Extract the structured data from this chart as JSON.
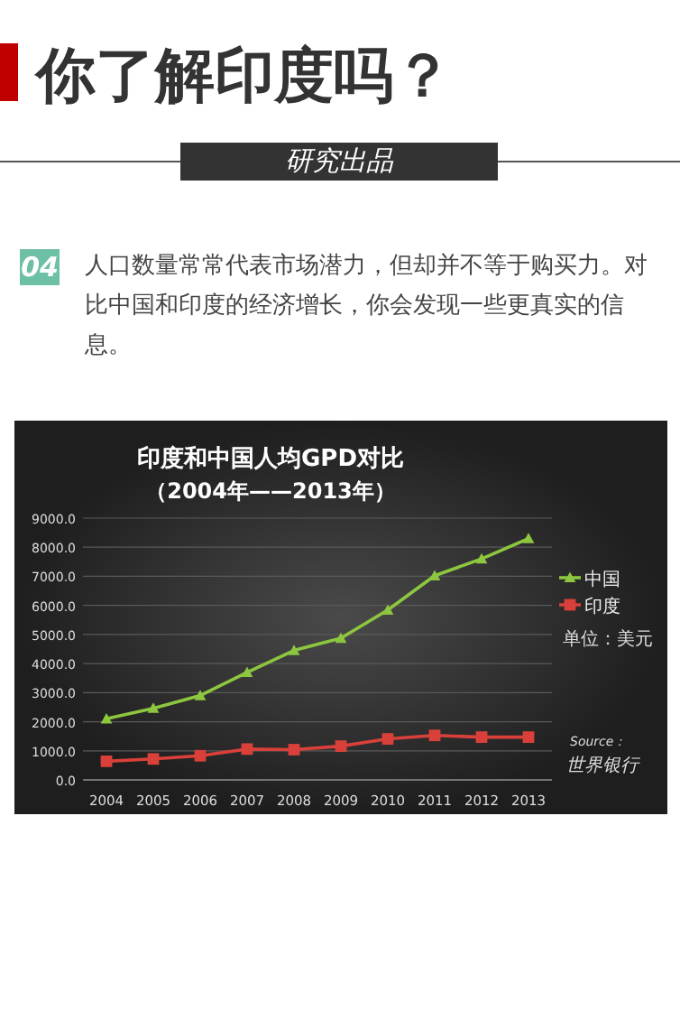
{
  "chart_data": {
    "type": "line",
    "title": "印度和中国人均GPD对比",
    "subtitle": "（2004年——2013年）",
    "categories": [
      "2004",
      "2005",
      "2006",
      "2007",
      "2008",
      "2009",
      "2010",
      "2011",
      "2012",
      "2013"
    ],
    "series": [
      {
        "name": "中国",
        "color": "#8dc63f",
        "marker": "triangle",
        "values": [
          2100,
          2460,
          2900,
          3700,
          4450,
          4870,
          5840,
          7020,
          7600,
          8300
        ]
      },
      {
        "name": "印度",
        "color": "#d9403a",
        "marker": "square",
        "values": [
          640,
          720,
          830,
          1060,
          1040,
          1160,
          1410,
          1530,
          1470,
          1470
        ]
      }
    ],
    "ylim": [
      0,
      9000
    ],
    "yticks": [
      {
        "value": 0,
        "label": "0.0"
      },
      {
        "value": 1000,
        "label": "1000.0"
      },
      {
        "value": 2000,
        "label": "2000.0"
      },
      {
        "value": 3000,
        "label": "3000.0"
      },
      {
        "value": 4000,
        "label": "4000.0"
      },
      {
        "value": 5000,
        "label": "5000.0"
      },
      {
        "value": 6000,
        "label": "6000.0"
      },
      {
        "value": 7000,
        "label": "7000.0"
      },
      {
        "value": 8000,
        "label": "8000.0"
      },
      {
        "value": 9000,
        "label": "9000.0"
      }
    ],
    "grid": "y",
    "legend": "right",
    "annotations": [
      "你了解印度吗？",
      "研究出品",
      "04",
      "人口数量常常代表市场潜力，但却并不等于购买力。对比中国和印度的经济增长，你会发现一些更真实的信息。",
      "单位：美元",
      "Source：",
      "世界银行"
    ]
  }
}
